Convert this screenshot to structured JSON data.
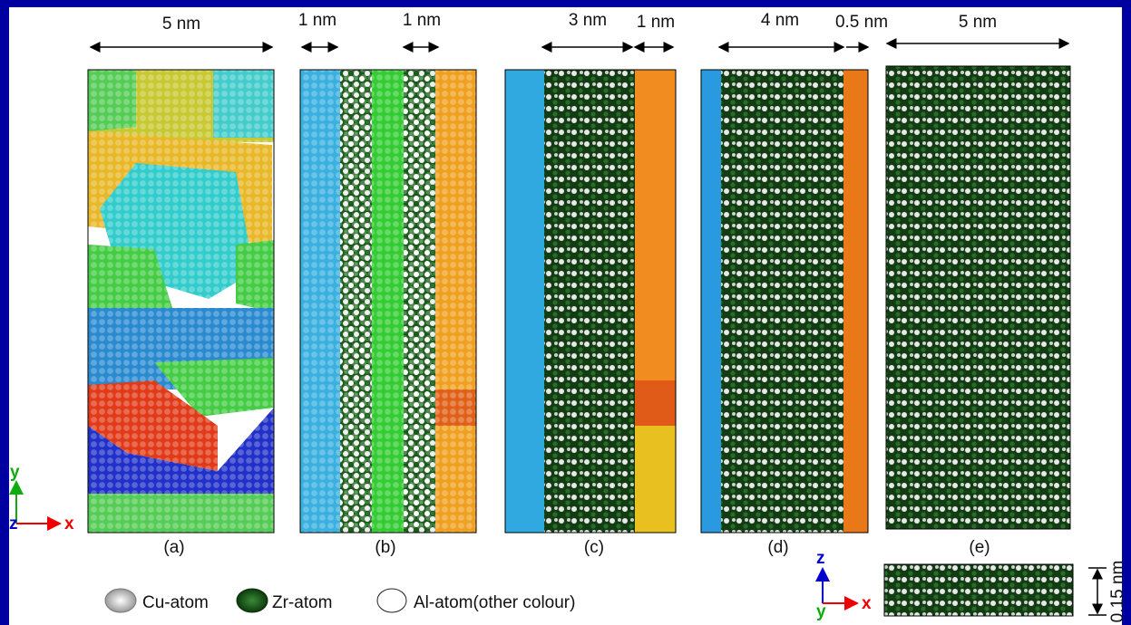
{
  "dimensions": [
    "5 nm",
    "1 nm",
    "1 nm",
    "3 nm",
    "1 nm",
    "4 nm",
    "0.5 nm",
    "5 nm"
  ],
  "panels": [
    "(a)",
    "(b)",
    "(c)",
    "(d)",
    "(e)"
  ],
  "axes": {
    "y": "y",
    "z": "z",
    "x": "x"
  },
  "legend": [
    "Cu-atom",
    "Zr-atom",
    "Al-atom(other colour)"
  ],
  "thickness": "0.15 nm"
}
